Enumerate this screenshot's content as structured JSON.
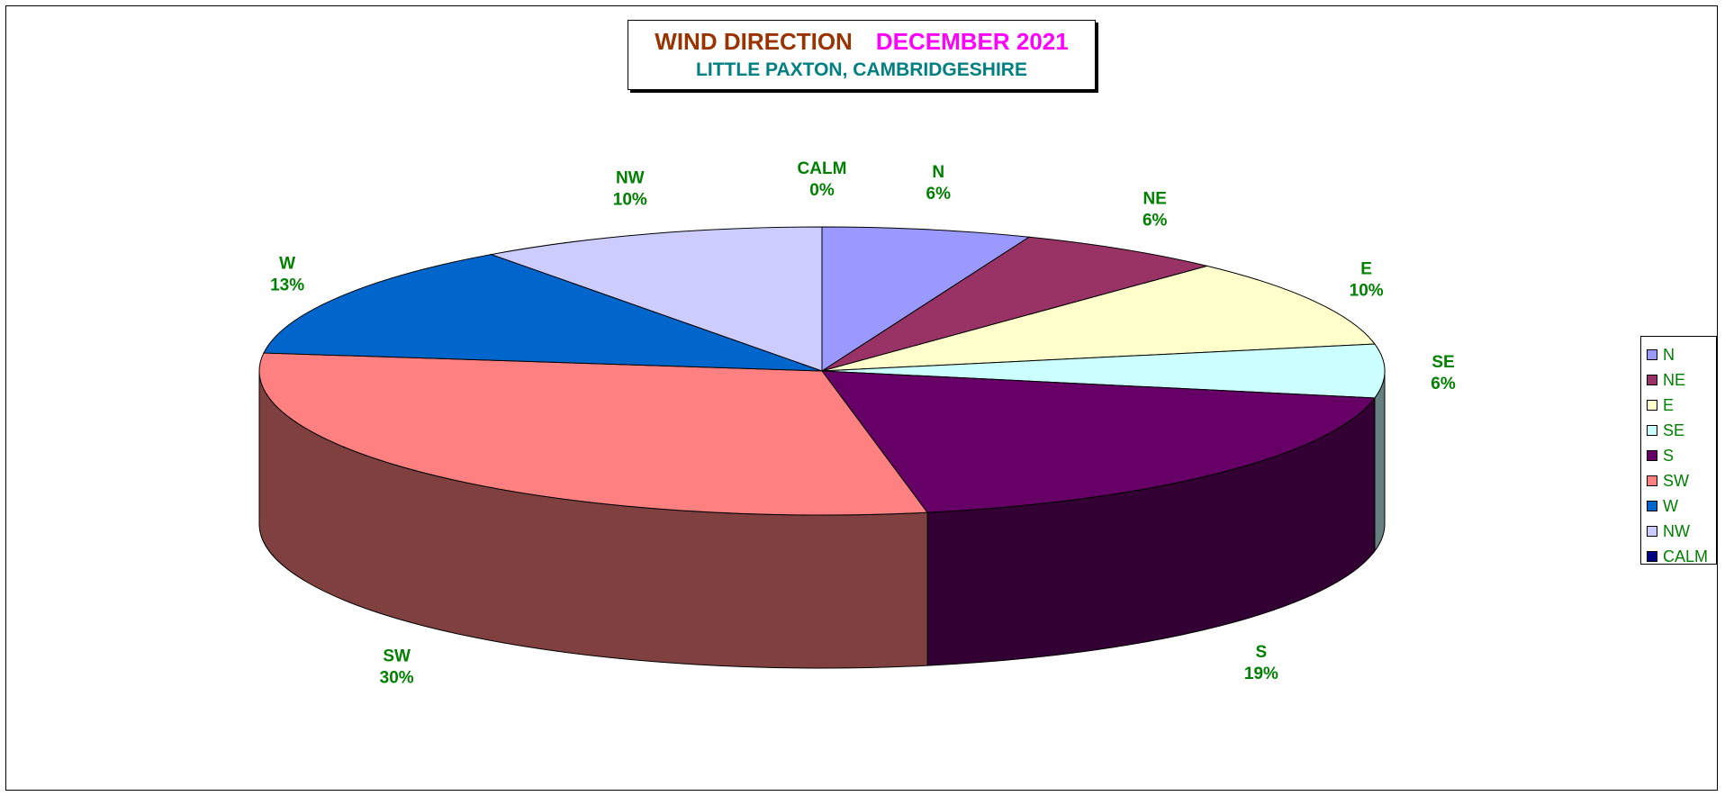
{
  "title": {
    "main": "WIND DIRECTION",
    "month": "DECEMBER 2021",
    "subtitle": "LITTLE PAXTON, CAMBRIDGESHIRE"
  },
  "chart_data": {
    "type": "pie",
    "style": "3d",
    "legend_position": "right",
    "categories": [
      "N",
      "NE",
      "E",
      "SE",
      "S",
      "SW",
      "W",
      "NW",
      "CALM"
    ],
    "values": [
      6,
      6,
      10,
      6,
      19,
      30,
      13,
      10,
      0
    ],
    "value_labels": [
      "6%",
      "6%",
      "10%",
      "6%",
      "19%",
      "30%",
      "13%",
      "10%",
      "0%"
    ],
    "colors": [
      "#9999ff",
      "#993366",
      "#ffffcc",
      "#ccffff",
      "#660066",
      "#ff8080",
      "#0066cc",
      "#ccccff",
      "#000080"
    ],
    "label_color": "#008000"
  }
}
